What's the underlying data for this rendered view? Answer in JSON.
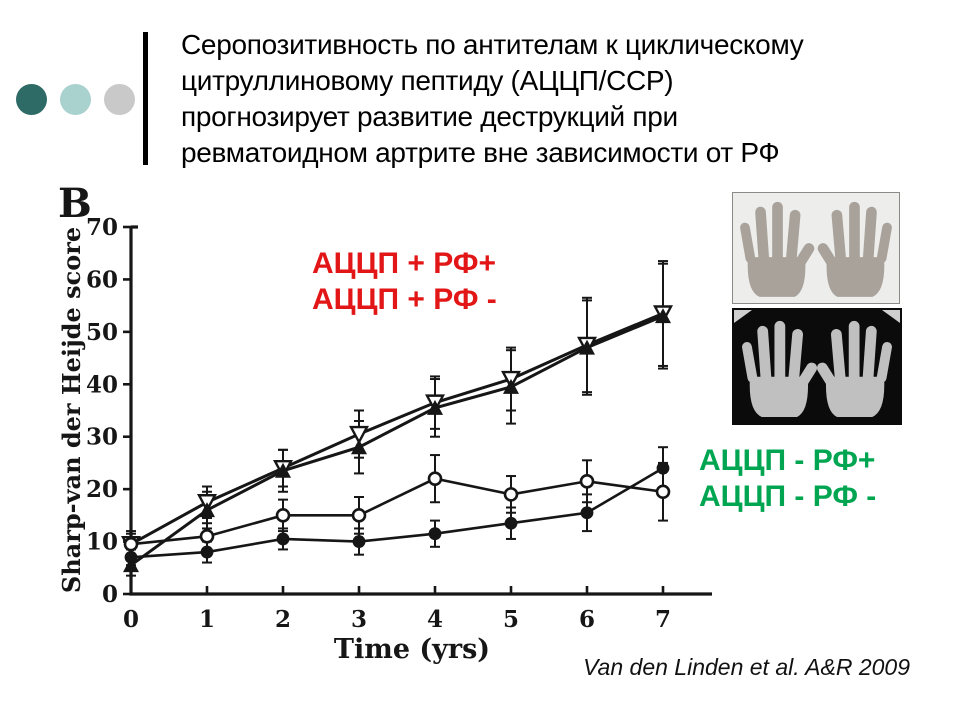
{
  "slide": {
    "title_lines": [
      "Серопозитивность по антителам к циклическому",
      "цитруллиновому пептиду (АЦЦП/CCP)",
      "прогнозирует развитие деструкций при",
      "ревматоидном артрите вне зависимости от РФ"
    ],
    "citation": "Van den Linden et al. A&R 2009",
    "decor": {
      "circle_colors": [
        "#2e6a66",
        "#a9d2cf",
        "#c9c9c9"
      ]
    }
  },
  "labels": {
    "red": [
      "АЦЦП + РФ+",
      "АЦЦП + РФ -"
    ],
    "green": [
      "АЦЦП - РФ+",
      "АЦЦП - РФ -"
    ],
    "red_color": "#e21616",
    "green_color": "#00a551"
  },
  "chart_data": {
    "type": "line",
    "panel_label": "B",
    "xlabel": "Time (yrs)",
    "ylabel": "Sharp-van der Heijde score",
    "x": [
      0,
      1,
      2,
      3,
      4,
      5,
      6,
      7
    ],
    "xlim": [
      0,
      7.6
    ],
    "ylim": [
      0,
      70
    ],
    "yticks": [
      0,
      10,
      20,
      30,
      40,
      50,
      60,
      70
    ],
    "grid": false,
    "error_bars": true,
    "legend_position": "text annotations on slide (red = CCP+, green = CCP-)",
    "series": [
      {
        "name": "АЦЦП + РФ+",
        "marker": "triangle-down-open",
        "values": [
          9.5,
          17.5,
          24,
          30.5,
          36.5,
          41,
          47.5,
          53.5
        ],
        "err": [
          2.5,
          3,
          3.5,
          4.5,
          5,
          6,
          9,
          10
        ]
      },
      {
        "name": "АЦЦП + РФ -",
        "marker": "triangle-up-filled",
        "values": [
          5.5,
          16,
          23.5,
          28,
          35.5,
          39.5,
          47,
          53
        ],
        "err": [
          2,
          3.5,
          4,
          5,
          5.5,
          7,
          9,
          10
        ]
      },
      {
        "name": "АЦЦП - РФ+",
        "marker": "circle-open",
        "values": [
          9.5,
          11,
          15,
          15,
          22,
          19,
          21.5,
          19.5
        ],
        "err": [
          2,
          2.5,
          3,
          3.5,
          4.5,
          3.5,
          4,
          5.5
        ]
      },
      {
        "name": "АЦЦП - РФ -",
        "marker": "circle-filled",
        "values": [
          7,
          8,
          10.5,
          10,
          11.5,
          13.5,
          15.5,
          24
        ],
        "err": [
          1.5,
          2,
          2,
          2.5,
          2.5,
          3,
          3.5,
          4
        ]
      }
    ]
  }
}
